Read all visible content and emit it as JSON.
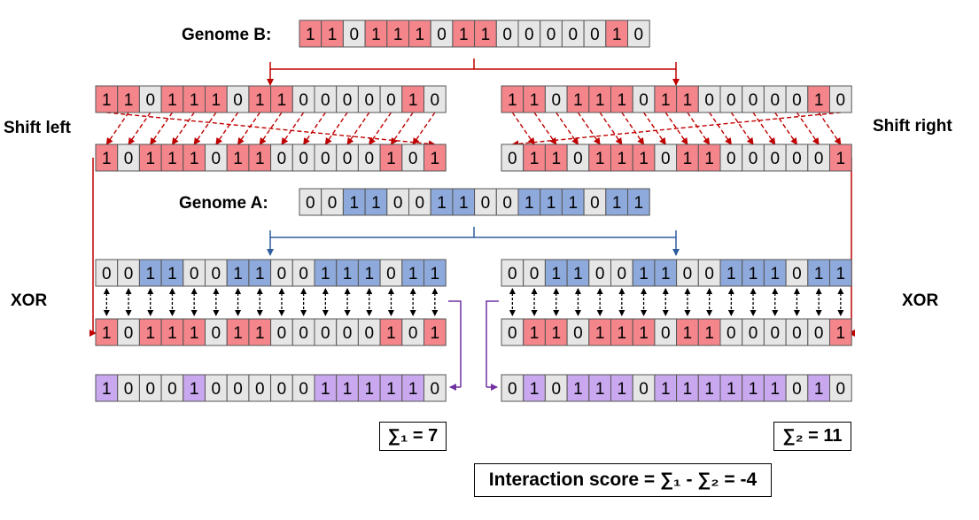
{
  "labels": {
    "genome_b": "Genome B:",
    "genome_a": "Genome A:",
    "shift_left": "Shift left",
    "shift_right": "Shift right",
    "xor_left": "XOR",
    "xor_right": "XOR"
  },
  "results": {
    "sum1": "∑₁ = 7",
    "sum2": "∑₂ = 11",
    "interaction": "Interaction score = ∑₁ - ∑₂ = -4"
  },
  "colors": {
    "red": "#f4868b",
    "blue": "#8ea9db",
    "gray": "#e6e6e6",
    "purple": "#c9a8ef",
    "dark_red": "#c00000",
    "dark_blue": "#2e5c9e",
    "purple_line": "#7030a0"
  },
  "rows": {
    "genome_b": {
      "bits": [
        1,
        1,
        0,
        1,
        1,
        1,
        0,
        1,
        1,
        0,
        0,
        0,
        0,
        0,
        1,
        0
      ],
      "colors": [
        "r",
        "r",
        "g",
        "r",
        "r",
        "r",
        "g",
        "r",
        "r",
        "g",
        "g",
        "g",
        "g",
        "g",
        "r",
        "g"
      ]
    },
    "b_left": {
      "bits": [
        1,
        1,
        0,
        1,
        1,
        1,
        0,
        1,
        1,
        0,
        0,
        0,
        0,
        0,
        1,
        0
      ],
      "colors": [
        "r",
        "r",
        "g",
        "r",
        "r",
        "r",
        "g",
        "r",
        "r",
        "g",
        "g",
        "g",
        "g",
        "g",
        "r",
        "g"
      ]
    },
    "b_right": {
      "bits": [
        1,
        1,
        0,
        1,
        1,
        1,
        0,
        1,
        1,
        0,
        0,
        0,
        0,
        0,
        1,
        0
      ],
      "colors": [
        "r",
        "r",
        "g",
        "r",
        "r",
        "r",
        "g",
        "r",
        "r",
        "g",
        "g",
        "g",
        "g",
        "g",
        "r",
        "g"
      ]
    },
    "shifted_left": {
      "bits": [
        1,
        0,
        1,
        1,
        1,
        0,
        1,
        1,
        0,
        0,
        0,
        0,
        0,
        1,
        0,
        1
      ],
      "colors": [
        "r",
        "g",
        "r",
        "r",
        "r",
        "g",
        "r",
        "r",
        "g",
        "g",
        "g",
        "g",
        "g",
        "r",
        "g",
        "r"
      ]
    },
    "shifted_right": {
      "bits": [
        0,
        1,
        1,
        0,
        1,
        1,
        1,
        0,
        1,
        1,
        0,
        0,
        0,
        0,
        0,
        1
      ],
      "colors": [
        "g",
        "r",
        "r",
        "g",
        "r",
        "r",
        "r",
        "g",
        "r",
        "r",
        "g",
        "g",
        "g",
        "g",
        "g",
        "r"
      ]
    },
    "genome_a": {
      "bits": [
        0,
        0,
        1,
        1,
        0,
        0,
        1,
        1,
        0,
        0,
        1,
        1,
        1,
        0,
        1,
        1
      ],
      "colors": [
        "g",
        "g",
        "b",
        "b",
        "g",
        "g",
        "b",
        "b",
        "g",
        "g",
        "b",
        "b",
        "b",
        "g",
        "b",
        "b"
      ]
    },
    "a_left": {
      "bits": [
        0,
        0,
        1,
        1,
        0,
        0,
        1,
        1,
        0,
        0,
        1,
        1,
        1,
        0,
        1,
        1
      ],
      "colors": [
        "g",
        "g",
        "b",
        "b",
        "g",
        "g",
        "b",
        "b",
        "g",
        "g",
        "b",
        "b",
        "b",
        "g",
        "b",
        "b"
      ]
    },
    "a_right": {
      "bits": [
        0,
        0,
        1,
        1,
        0,
        0,
        1,
        1,
        0,
        0,
        1,
        1,
        1,
        0,
        1,
        1
      ],
      "colors": [
        "g",
        "g",
        "b",
        "b",
        "g",
        "g",
        "b",
        "b",
        "g",
        "g",
        "b",
        "b",
        "b",
        "g",
        "b",
        "b"
      ]
    },
    "xor_in_left": {
      "bits": [
        1,
        0,
        1,
        1,
        1,
        0,
        1,
        1,
        0,
        0,
        0,
        0,
        0,
        1,
        0,
        1
      ],
      "colors": [
        "r",
        "g",
        "r",
        "r",
        "r",
        "g",
        "r",
        "r",
        "g",
        "g",
        "g",
        "g",
        "g",
        "r",
        "g",
        "r"
      ]
    },
    "xor_in_right": {
      "bits": [
        0,
        1,
        1,
        0,
        1,
        1,
        1,
        0,
        1,
        1,
        0,
        0,
        0,
        0,
        0,
        1
      ],
      "colors": [
        "g",
        "r",
        "r",
        "g",
        "r",
        "r",
        "r",
        "g",
        "r",
        "r",
        "g",
        "g",
        "g",
        "g",
        "g",
        "r"
      ]
    },
    "xor_out_left": {
      "bits": [
        1,
        0,
        0,
        0,
        1,
        0,
        0,
        0,
        0,
        0,
        1,
        1,
        1,
        1,
        1,
        0
      ],
      "colors": [
        "p",
        "g",
        "g",
        "g",
        "p",
        "g",
        "g",
        "g",
        "g",
        "g",
        "p",
        "p",
        "p",
        "p",
        "p",
        "g"
      ]
    },
    "xor_out_right": {
      "bits": [
        0,
        1,
        0,
        1,
        1,
        1,
        0,
        1,
        1,
        1,
        1,
        1,
        1,
        0,
        1,
        0
      ],
      "colors": [
        "g",
        "p",
        "g",
        "p",
        "p",
        "p",
        "g",
        "p",
        "p",
        "p",
        "p",
        "p",
        "p",
        "g",
        "p",
        "g"
      ]
    }
  }
}
